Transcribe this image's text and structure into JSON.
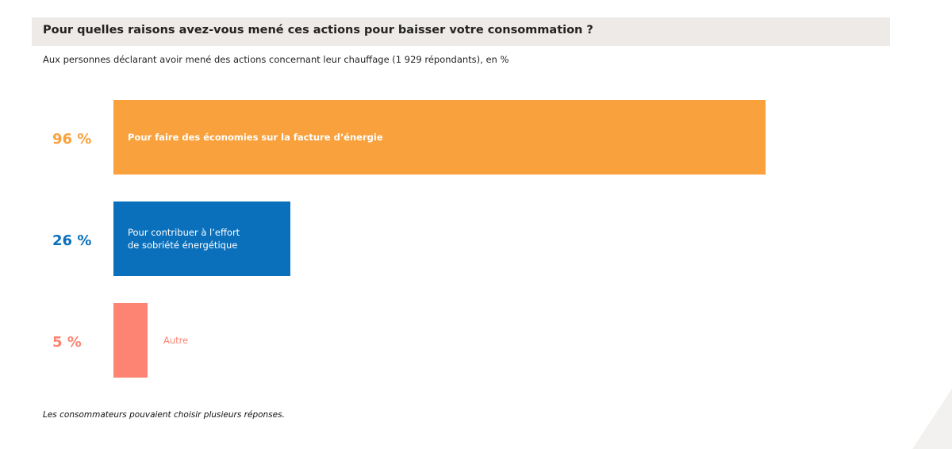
{
  "header": {
    "title": "Pour quelles raisons avez-vous mené ces actions pour baisser votre consommation ?",
    "subtitle": "Aux personnes déclarant avoir mené des actions concernant leur chauffage (1 929  répondants), en %"
  },
  "footnote": "Les consommateurs pouvaient choisir plusieurs réponses.",
  "chart_data": {
    "type": "bar",
    "orientation": "horizontal",
    "title": "Pour quelles raisons avez-vous mené ces actions pour baisser votre consommation ?",
    "subtitle": "Aux personnes déclarant avoir mené des actions concernant leur chauffage (1 929  répondants), en %",
    "unit": "%",
    "xlim": [
      0,
      100
    ],
    "grid": false,
    "legend": "none",
    "bars": [
      {
        "value": 96,
        "value_label": "96 %",
        "category_lines": [
          "Pour faire des économies sur la facture d’énergie"
        ],
        "color": "#f9a13c",
        "label_inside": true
      },
      {
        "value": 26,
        "value_label": "26 %",
        "category_lines": [
          "Pour contribuer à l’effort",
          "de sobriété énergétique"
        ],
        "color": "#0a70bc",
        "label_inside": true
      },
      {
        "value": 5,
        "value_label": "5 %",
        "category_lines": [
          "Autre"
        ],
        "color": "#fd8473",
        "label_inside": false
      }
    ]
  }
}
